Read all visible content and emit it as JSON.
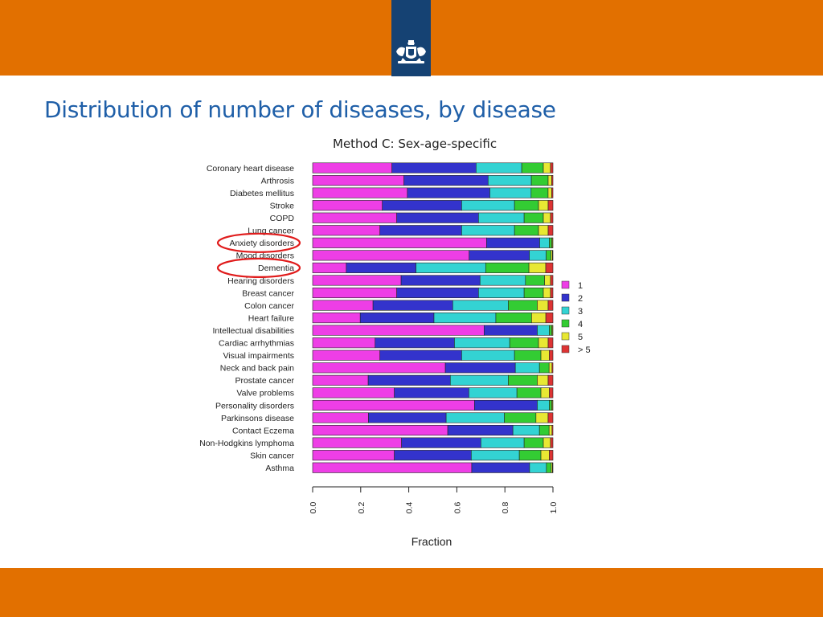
{
  "slide": {
    "title": "Distribution of number of diseases, by disease",
    "subtitle": "Method C: Sex-age-specific"
  },
  "chart_data": {
    "type": "bar",
    "orientation": "horizontal",
    "stacked": true,
    "title": "Method C: Sex-age-specific",
    "xlabel": "Fraction",
    "ylabel": "",
    "xlim": [
      0,
      1
    ],
    "xticks": [
      "0.0",
      "0.2",
      "0.4",
      "0.6",
      "0.8",
      "1.0"
    ],
    "grid": false,
    "legend_position": "right",
    "categories": [
      "Coronary heart disease",
      "Arthrosis",
      "Diabetes mellitus",
      "Stroke",
      "COPD",
      "Lung cancer",
      "Anxiety disorders",
      "Mood disorders",
      "Dementia",
      "Hearing disorders",
      "Breast cancer",
      "Colon cancer",
      "Heart failure",
      "Intellectual disabilities",
      "Cardiac arrhythmias",
      "Visual impairments",
      "Neck and back pain",
      "Prostate cancer",
      "Valve problems",
      "Personality disorders",
      "Parkinsons disease",
      "Contact Eczema",
      "Non-Hodgkins lymphoma",
      "Skin cancer",
      "Asthma"
    ],
    "series": [
      {
        "name": "1",
        "color": "#ee3ee6",
        "values": [
          0.33,
          0.38,
          0.39,
          0.29,
          0.35,
          0.28,
          0.72,
          0.65,
          0.14,
          0.37,
          0.35,
          0.25,
          0.2,
          0.71,
          0.26,
          0.28,
          0.55,
          0.23,
          0.34,
          0.67,
          0.23,
          0.56,
          0.37,
          0.34,
          0.66
        ]
      },
      {
        "name": "2",
        "color": "#3333cc",
        "values": [
          0.35,
          0.35,
          0.34,
          0.33,
          0.34,
          0.34,
          0.22,
          0.25,
          0.29,
          0.33,
          0.34,
          0.33,
          0.31,
          0.22,
          0.33,
          0.34,
          0.29,
          0.34,
          0.31,
          0.26,
          0.32,
          0.27,
          0.33,
          0.32,
          0.24
        ]
      },
      {
        "name": "3",
        "color": "#33d3d3",
        "values": [
          0.19,
          0.18,
          0.17,
          0.22,
          0.19,
          0.22,
          0.04,
          0.07,
          0.29,
          0.19,
          0.19,
          0.23,
          0.26,
          0.05,
          0.23,
          0.22,
          0.1,
          0.24,
          0.2,
          0.05,
          0.24,
          0.11,
          0.18,
          0.2,
          0.07
        ]
      },
      {
        "name": "4",
        "color": "#33cc33",
        "values": [
          0.09,
          0.07,
          0.07,
          0.1,
          0.08,
          0.1,
          0.01,
          0.02,
          0.18,
          0.08,
          0.08,
          0.12,
          0.15,
          0.01,
          0.12,
          0.11,
          0.04,
          0.12,
          0.1,
          0.01,
          0.13,
          0.04,
          0.08,
          0.09,
          0.02
        ]
      },
      {
        "name": "5",
        "color": "#e8e833",
        "values": [
          0.03,
          0.015,
          0.015,
          0.04,
          0.03,
          0.04,
          0.004,
          0.006,
          0.07,
          0.025,
          0.03,
          0.045,
          0.06,
          0.004,
          0.04,
          0.035,
          0.012,
          0.045,
          0.035,
          0.004,
          0.05,
          0.012,
          0.03,
          0.035,
          0.005
        ]
      },
      {
        "name": "> 5",
        "color": "#dd3333",
        "values": [
          0.01,
          0.005,
          0.005,
          0.02,
          0.01,
          0.02,
          0.001,
          0.002,
          0.03,
          0.01,
          0.01,
          0.02,
          0.03,
          0.001,
          0.02,
          0.015,
          0.004,
          0.02,
          0.015,
          0.001,
          0.02,
          0.004,
          0.01,
          0.015,
          0.002
        ]
      }
    ],
    "annotations": [
      {
        "type": "circle",
        "color": "#e01b1b",
        "target": "Anxiety disorders"
      },
      {
        "type": "circle",
        "color": "#e01b1b",
        "target": "Dementia"
      }
    ]
  }
}
